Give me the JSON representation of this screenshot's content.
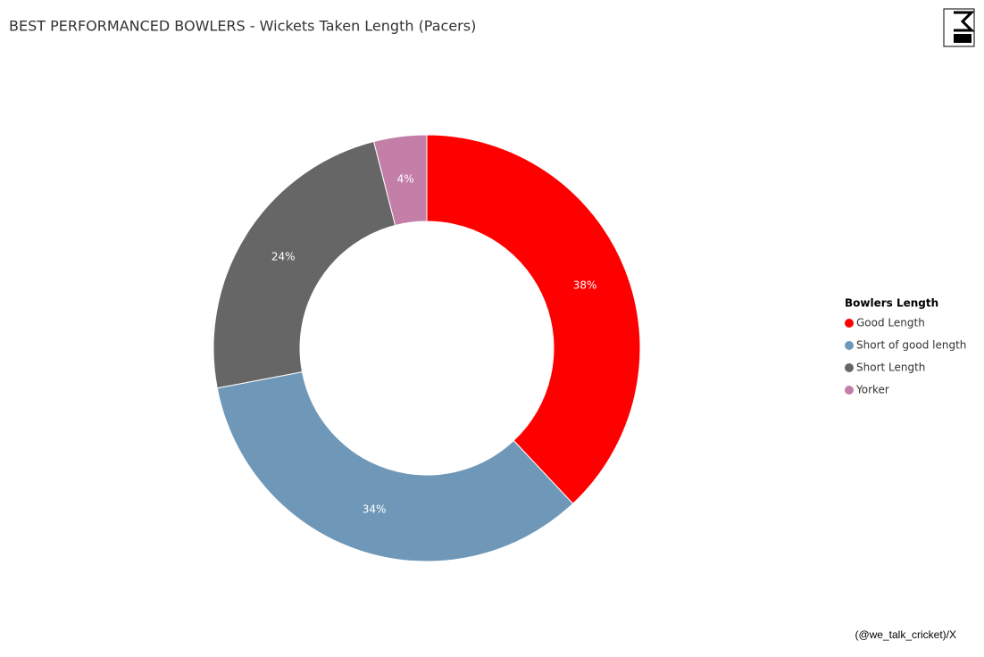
{
  "chart_data": {
    "type": "donut",
    "title": "BEST PERFORMANCED BOWLERS - Wickets Taken Length (Pacers)",
    "legend_title": "Bowlers Length",
    "categories": [
      "Good Length",
      "Short of good length",
      "Short Length",
      "Yorker"
    ],
    "values": [
      38,
      34,
      24,
      4
    ],
    "value_labels": [
      "38%",
      "34%",
      "24%",
      "4%"
    ],
    "colors": [
      "#ff0000",
      "#6f98b8",
      "#666666",
      "#c47fa8"
    ],
    "legend_position": "right",
    "footnote": "(@we_talk_cricket)/X"
  }
}
